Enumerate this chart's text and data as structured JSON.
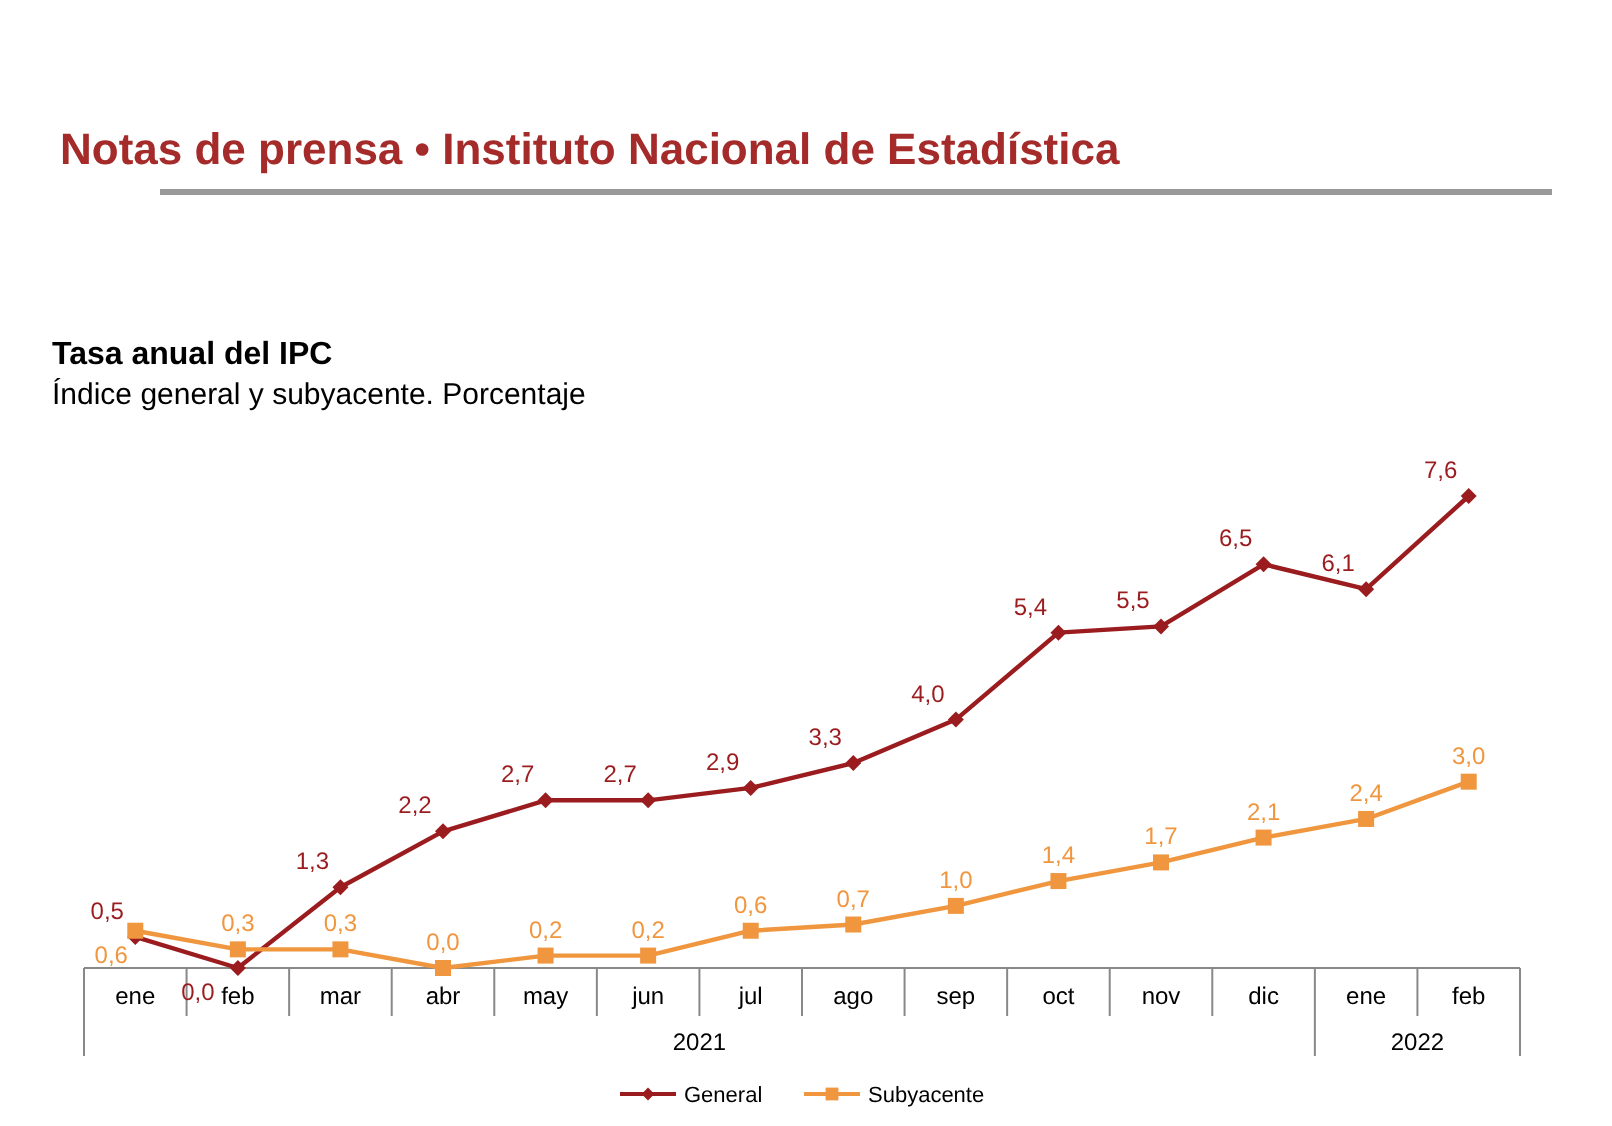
{
  "chart_data": {
    "type": "line",
    "title": "Tasa anual del IPC",
    "subtitle": "Índice general y subyacente. Porcentaje",
    "annotations": [
      "Notas de prensa • Instituto Nacional de Estadística",
      "2021",
      "2022"
    ],
    "categories": [
      "ene",
      "feb",
      "mar",
      "abr",
      "may",
      "jun",
      "jul",
      "ago",
      "sep",
      "oct",
      "nov",
      "dic",
      "ene",
      "feb"
    ],
    "series": [
      {
        "name": "General",
        "color": "#9b1c1f",
        "marker": "diamond",
        "values": [
          0.5,
          0.0,
          1.3,
          2.2,
          2.7,
          2.7,
          2.9,
          3.3,
          4.0,
          5.4,
          5.5,
          6.5,
          6.1,
          7.6
        ],
        "value_labels": [
          "0,5",
          "0,0",
          "1,3",
          "2,2",
          "2,7",
          "2,7",
          "2,9",
          "3,3",
          "4,0",
          "5,4",
          "5,5",
          "6,5",
          "6,1",
          "7,6"
        ]
      },
      {
        "name": "Subyacente",
        "color": "#f0963f",
        "marker": "square",
        "values": [
          0.6,
          0.3,
          0.3,
          0.0,
          0.2,
          0.2,
          0.6,
          0.7,
          1.0,
          1.4,
          1.7,
          2.1,
          2.4,
          3.0
        ],
        "value_labels": [
          "0,6",
          "0,3",
          "0,3",
          "0,0",
          "0,2",
          "0,2",
          "0,6",
          "0,7",
          "1,0",
          "1,4",
          "1,7",
          "2,1",
          "2,4",
          "3,0"
        ]
      }
    ],
    "legend": "bottom"
  }
}
